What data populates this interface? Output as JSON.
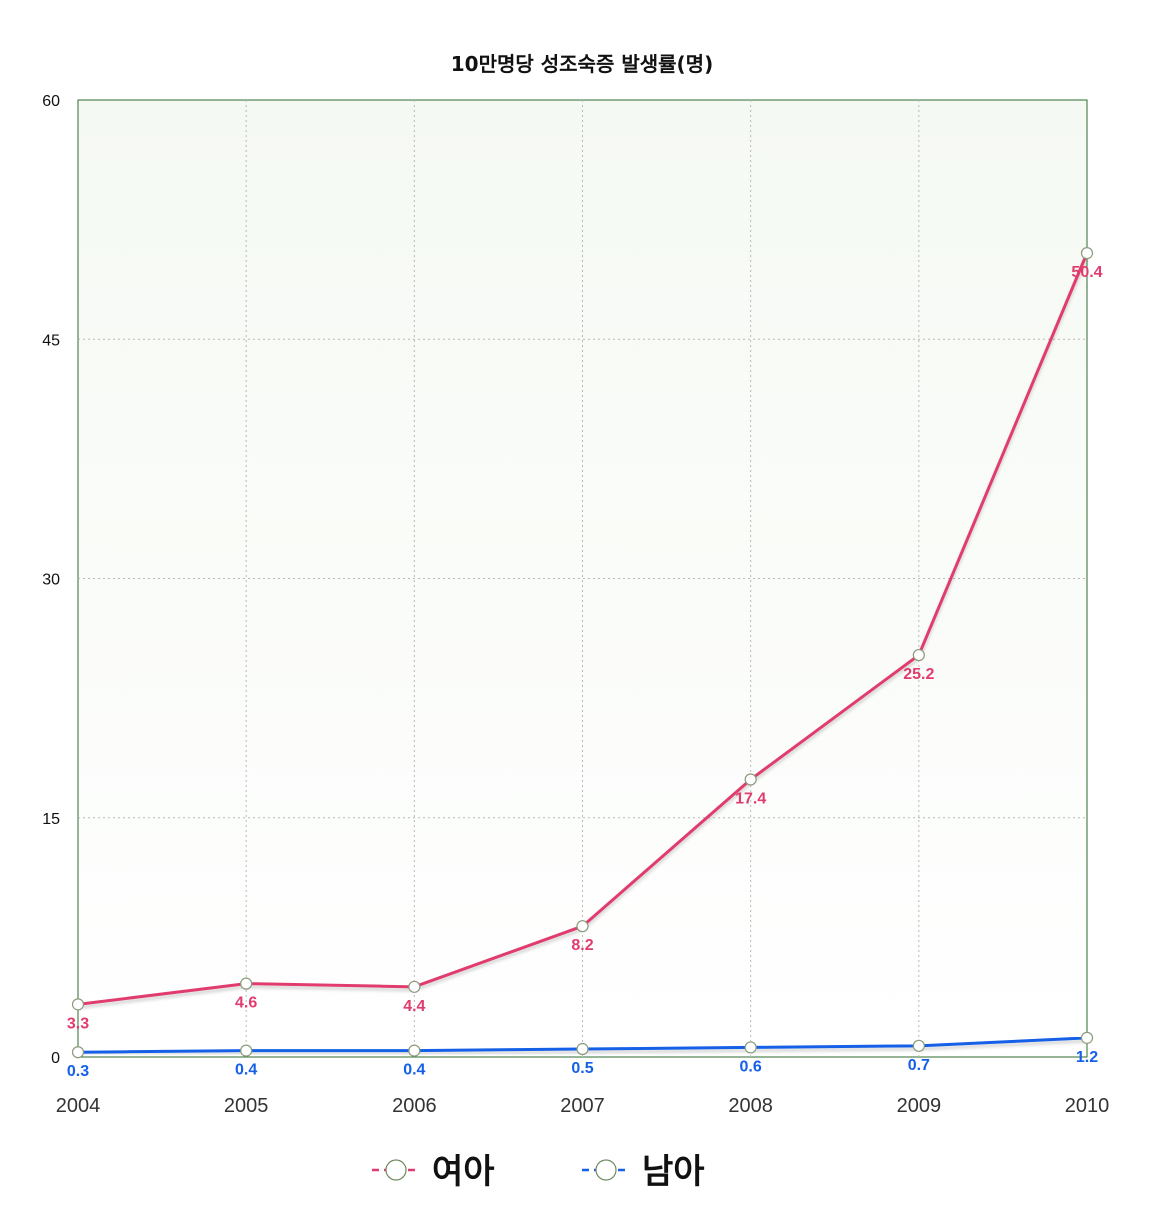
{
  "chart_data": {
    "type": "line",
    "title": "10만명당 성조숙증 발생률(명)",
    "xlabel": "",
    "ylabel": "",
    "categories": [
      "2004",
      "2005",
      "2006",
      "2007",
      "2008",
      "2009",
      "2010"
    ],
    "ylim": [
      0,
      60
    ],
    "yticks": [
      "0",
      "15",
      "30",
      "45",
      "60"
    ],
    "grid": true,
    "legend_position": "bottom",
    "series": [
      {
        "name": "여아",
        "color": "#e03c6e",
        "values": [
          3.3,
          4.6,
          4.4,
          8.2,
          17.4,
          25.2,
          50.4
        ],
        "labels": [
          "3.3",
          "4.6",
          "4.4",
          "8.2",
          "17.4",
          "25.2",
          "50.4"
        ]
      },
      {
        "name": "남아",
        "color": "#1560e8",
        "values": [
          0.3,
          0.4,
          0.4,
          0.5,
          0.6,
          0.7,
          1.2
        ],
        "labels": [
          "0.3",
          "0.4",
          "0.4",
          "0.5",
          "0.6",
          "0.7",
          "1.2"
        ]
      }
    ]
  }
}
